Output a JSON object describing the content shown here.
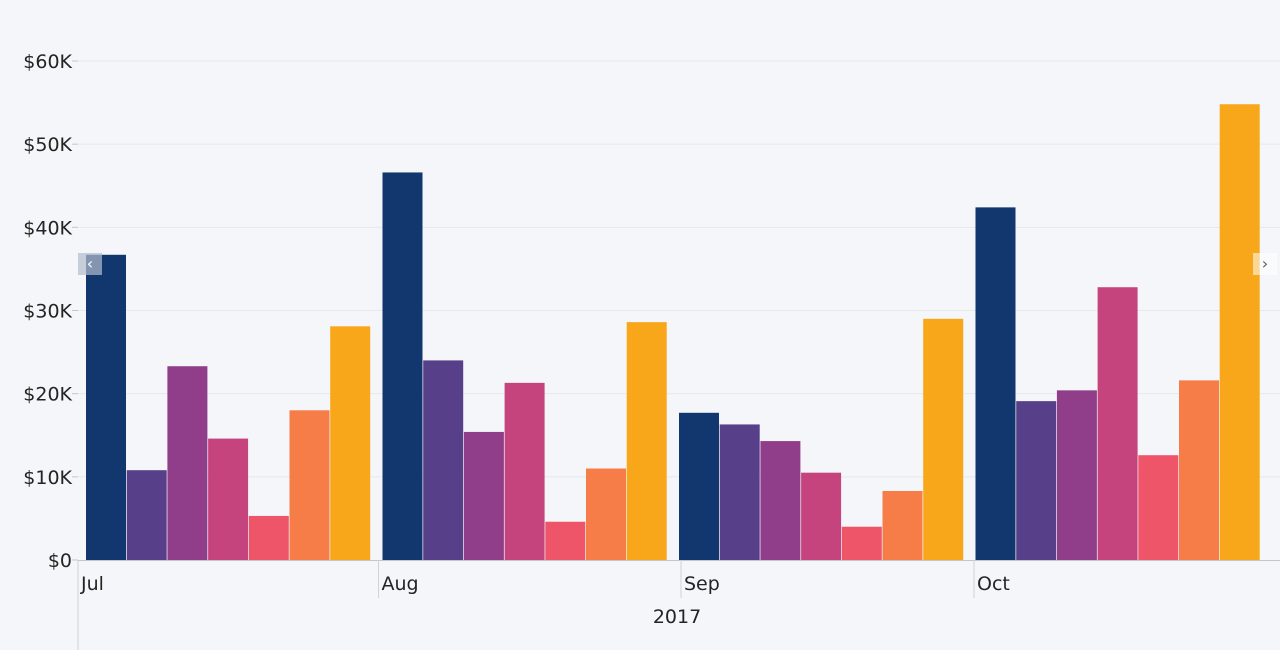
{
  "chart_data": {
    "type": "bar",
    "categories": [
      "Jul",
      "Aug",
      "Sep",
      "Oct"
    ],
    "group_label": "2017",
    "ylim": [
      0,
      60000
    ],
    "yticks": [
      {
        "value": 0,
        "label": "$0"
      },
      {
        "value": 10000,
        "label": "$10K"
      },
      {
        "value": 20000,
        "label": "$20K"
      },
      {
        "value": 30000,
        "label": "$30K"
      },
      {
        "value": 40000,
        "label": "$40K"
      },
      {
        "value": 50000,
        "label": "$50K"
      },
      {
        "value": 60000,
        "label": "$60K"
      }
    ],
    "grid": true,
    "series": [
      {
        "color": "#12376f",
        "values": [
          36700,
          46600,
          17700,
          42400
        ]
      },
      {
        "color": "#573f8a",
        "values": [
          10800,
          24000,
          16300,
          19100
        ]
      },
      {
        "color": "#913e8a",
        "values": [
          23300,
          15400,
          14300,
          20400
        ]
      },
      {
        "color": "#c6447e",
        "values": [
          14600,
          21300,
          10500,
          32800
        ]
      },
      {
        "color": "#ee5569",
        "values": [
          5300,
          4600,
          4000,
          12600
        ]
      },
      {
        "color": "#f67c48",
        "values": [
          18000,
          11000,
          8300,
          21600
        ]
      },
      {
        "color": "#f7a719",
        "values": [
          28100,
          28600,
          29000,
          54800
        ]
      }
    ]
  },
  "controls": {
    "scroll_left_icon": "‹",
    "scroll_right_icon": "›"
  }
}
